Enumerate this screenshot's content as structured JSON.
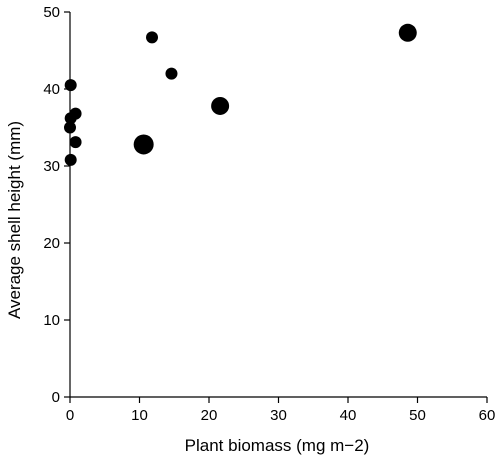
{
  "chart_data": {
    "type": "scatter",
    "xlabel": "Plant biomass (mg m−2)",
    "ylabel": "Average shell height (mm)",
    "xlim": [
      0,
      60
    ],
    "ylim": [
      0,
      50
    ],
    "x_ticks": [
      0,
      10,
      20,
      30,
      40,
      50,
      60
    ],
    "y_ticks": [
      0,
      10,
      20,
      30,
      40,
      50
    ],
    "grid": false,
    "legend": "none",
    "point_color": "#000000",
    "points": [
      {
        "x": 0.1,
        "y": 40.5,
        "size": "small"
      },
      {
        "x": 0.1,
        "y": 36.2,
        "size": "small"
      },
      {
        "x": 0.0,
        "y": 35.0,
        "size": "small"
      },
      {
        "x": 0.8,
        "y": 36.8,
        "size": "small"
      },
      {
        "x": 0.8,
        "y": 33.1,
        "size": "small"
      },
      {
        "x": 0.1,
        "y": 30.8,
        "size": "small"
      },
      {
        "x": 11.8,
        "y": 46.7,
        "size": "small"
      },
      {
        "x": 14.6,
        "y": 42.0,
        "size": "small"
      },
      {
        "x": 10.6,
        "y": 32.8,
        "size": "large"
      },
      {
        "x": 21.6,
        "y": 37.8,
        "size": "medium"
      },
      {
        "x": 48.6,
        "y": 47.3,
        "size": "medium"
      }
    ]
  }
}
